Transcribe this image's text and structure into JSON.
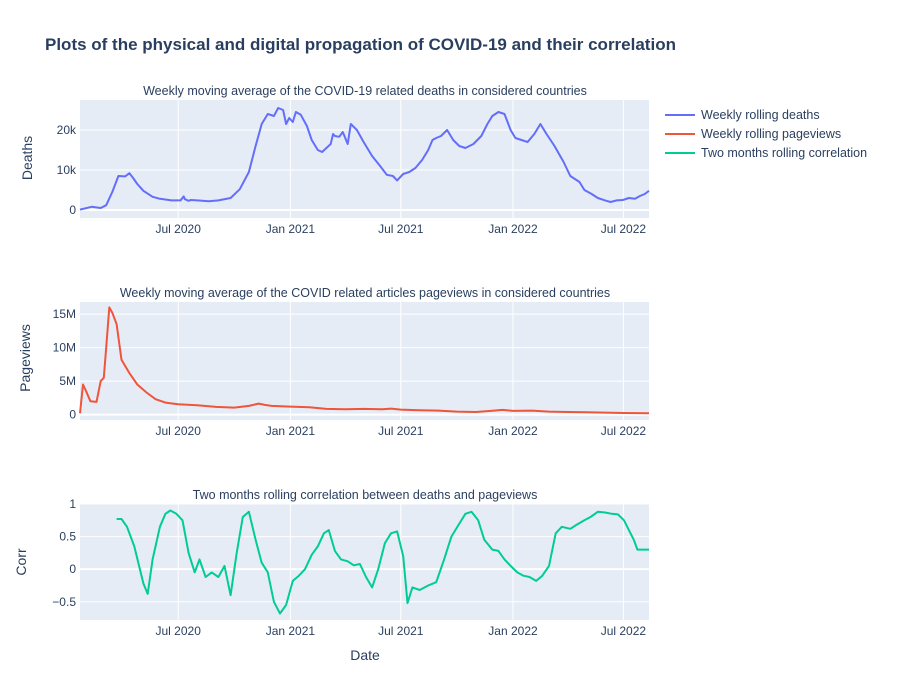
{
  "title": "Plots of the physical and digital propagation of COVID-19 and their correlation",
  "legend": [
    {
      "label": "Weekly rolling deaths",
      "color": "#636efa"
    },
    {
      "label": "Weekly rolling pageviews",
      "color": "#ef553b"
    },
    {
      "label": "Two months rolling correlation",
      "color": "#00cc96"
    }
  ],
  "chart_data": [
    {
      "type": "line",
      "title": "Weekly moving average of the COVID-19 related deaths in considered countries",
      "ylabel": "Deaths",
      "xlabel": "",
      "color": "#636efa",
      "xlim": [
        "2020-01-22",
        "2022-08-12"
      ],
      "ylim": [
        -2000,
        27500
      ],
      "x_ticks": [
        {
          "date": "2020-07-01",
          "label": "Jul 2020"
        },
        {
          "date": "2021-01-01",
          "label": "Jan 2021"
        },
        {
          "date": "2021-07-01",
          "label": "Jul 2021"
        },
        {
          "date": "2022-01-01",
          "label": "Jan 2022"
        },
        {
          "date": "2022-07-01",
          "label": "Jul 2022"
        }
      ],
      "y_ticks": [
        {
          "value": 0,
          "label": "0"
        },
        {
          "value": 10000,
          "label": "10k"
        },
        {
          "value": 20000,
          "label": "20k"
        }
      ],
      "series": [
        {
          "name": "Weekly rolling deaths",
          "x": [
            "2020-01-22",
            "2020-02-10",
            "2020-02-25",
            "2020-03-05",
            "2020-03-15",
            "2020-03-25",
            "2020-04-05",
            "2020-04-12",
            "2020-04-18",
            "2020-04-25",
            "2020-05-05",
            "2020-05-20",
            "2020-06-01",
            "2020-06-20",
            "2020-07-05",
            "2020-07-10",
            "2020-07-12",
            "2020-07-18",
            "2020-07-22",
            "2020-08-01",
            "2020-08-20",
            "2020-09-05",
            "2020-09-25",
            "2020-10-10",
            "2020-10-25",
            "2020-11-05",
            "2020-11-15",
            "2020-11-25",
            "2020-12-05",
            "2020-12-12",
            "2020-12-20",
            "2020-12-25",
            "2020-12-30",
            "2021-01-05",
            "2021-01-10",
            "2021-01-18",
            "2021-01-28",
            "2021-02-05",
            "2021-02-15",
            "2021-02-22",
            "2021-03-01",
            "2021-03-08",
            "2021-03-12",
            "2021-03-15",
            "2021-03-22",
            "2021-03-28",
            "2021-04-05",
            "2021-04-10",
            "2021-04-20",
            "2021-05-01",
            "2021-05-15",
            "2021-05-28",
            "2021-06-08",
            "2021-06-18",
            "2021-06-25",
            "2021-07-05",
            "2021-07-15",
            "2021-07-25",
            "2021-08-05",
            "2021-08-15",
            "2021-08-22",
            "2021-08-28",
            "2021-09-05",
            "2021-09-15",
            "2021-09-25",
            "2021-10-05",
            "2021-10-15",
            "2021-10-28",
            "2021-11-10",
            "2021-11-20",
            "2021-11-28",
            "2021-12-08",
            "2021-12-18",
            "2021-12-28",
            "2022-01-05",
            "2022-01-15",
            "2022-01-25",
            "2022-02-05",
            "2022-02-15",
            "2022-02-25",
            "2022-03-10",
            "2022-03-25",
            "2022-04-05",
            "2022-04-20",
            "2022-04-28",
            "2022-05-10",
            "2022-05-20",
            "2022-06-01",
            "2022-06-10",
            "2022-06-20",
            "2022-06-30",
            "2022-07-10",
            "2022-07-20",
            "2022-07-28",
            "2022-08-05",
            "2022-08-12"
          ],
          "y": [
            100,
            800,
            500,
            1200,
            4500,
            8500,
            8400,
            9200,
            8000,
            6500,
            4800,
            3300,
            2800,
            2400,
            2400,
            3400,
            2700,
            2300,
            2500,
            2400,
            2200,
            2400,
            3000,
            5200,
            9500,
            16000,
            21500,
            24000,
            23500,
            25500,
            25000,
            21500,
            23000,
            22000,
            24500,
            23800,
            21000,
            17500,
            15000,
            14500,
            15500,
            16500,
            19000,
            18500,
            18300,
            19500,
            16500,
            21500,
            20000,
            17000,
            13500,
            11000,
            8800,
            8500,
            7400,
            9000,
            9500,
            10500,
            12500,
            15000,
            17500,
            18000,
            18500,
            20000,
            17500,
            16000,
            15500,
            16500,
            18500,
            21500,
            23500,
            24500,
            24000,
            20000,
            18000,
            17500,
            17000,
            19000,
            21500,
            19000,
            16000,
            12000,
            8500,
            7000,
            5000,
            4000,
            3000,
            2400,
            2000,
            2400,
            2500,
            3000,
            2800,
            3500,
            4000,
            4800
          ]
        }
      ]
    },
    {
      "type": "line",
      "title": "Weekly moving average of the COVID related articles pageviews in considered countries",
      "ylabel": "Pageviews",
      "xlabel": "",
      "color": "#ef553b",
      "xlim": [
        "2020-01-22",
        "2022-08-12"
      ],
      "ylim": [
        -800000,
        16800000
      ],
      "x_ticks": [
        {
          "date": "2020-07-01",
          "label": "Jul 2020"
        },
        {
          "date": "2021-01-01",
          "label": "Jan 2021"
        },
        {
          "date": "2021-07-01",
          "label": "Jul 2021"
        },
        {
          "date": "2022-01-01",
          "label": "Jan 2022"
        },
        {
          "date": "2022-07-01",
          "label": "Jul 2022"
        }
      ],
      "y_ticks": [
        {
          "value": 0,
          "label": "0"
        },
        {
          "value": 5000000,
          "label": "5M"
        },
        {
          "value": 10000000,
          "label": "10M"
        },
        {
          "value": 15000000,
          "label": "15M"
        }
      ],
      "series": [
        {
          "name": "Weekly rolling pageviews",
          "x": [
            "2020-01-22",
            "2020-01-27",
            "2020-02-01",
            "2020-02-08",
            "2020-02-18",
            "2020-02-25",
            "2020-03-01",
            "2020-03-05",
            "2020-03-10",
            "2020-03-15",
            "2020-03-22",
            "2020-03-30",
            "2020-04-12",
            "2020-04-25",
            "2020-05-10",
            "2020-05-25",
            "2020-06-10",
            "2020-07-01",
            "2020-08-01",
            "2020-09-01",
            "2020-10-01",
            "2020-10-25",
            "2020-11-10",
            "2020-11-20",
            "2020-12-01",
            "2021-01-01",
            "2021-02-01",
            "2021-03-01",
            "2021-04-01",
            "2021-05-01",
            "2021-06-01",
            "2021-06-15",
            "2021-07-01",
            "2021-08-01",
            "2021-09-01",
            "2021-10-01",
            "2021-11-01",
            "2021-12-01",
            "2021-12-15",
            "2022-01-01",
            "2022-02-01",
            "2022-03-01",
            "2022-04-01",
            "2022-05-01",
            "2022-06-01",
            "2022-07-01",
            "2022-08-12"
          ],
          "y": [
            200000,
            4500000,
            3500000,
            2000000,
            1900000,
            5000000,
            5500000,
            10000000,
            16000000,
            15200000,
            13500000,
            8200000,
            6200000,
            4500000,
            3300000,
            2300000,
            1800000,
            1550000,
            1400000,
            1150000,
            1050000,
            1300000,
            1650000,
            1450000,
            1300000,
            1200000,
            1100000,
            850000,
            800000,
            850000,
            800000,
            900000,
            750000,
            650000,
            600000,
            450000,
            400000,
            600000,
            700000,
            550000,
            600000,
            450000,
            400000,
            350000,
            300000,
            250000,
            200000
          ]
        }
      ]
    },
    {
      "type": "line",
      "title": "Two months rolling correlation between deaths and pageviews",
      "ylabel": "Corr",
      "xlabel": "Date",
      "color": "#00cc96",
      "xlim": [
        "2020-01-22",
        "2022-08-12"
      ],
      "ylim": [
        -0.78,
        1.0
      ],
      "x_ticks": [
        {
          "date": "2020-07-01",
          "label": "Jul 2020"
        },
        {
          "date": "2021-01-01",
          "label": "Jan 2021"
        },
        {
          "date": "2021-07-01",
          "label": "Jul 2021"
        },
        {
          "date": "2022-01-01",
          "label": "Jan 2022"
        },
        {
          "date": "2022-07-01",
          "label": "Jul 2022"
        }
      ],
      "y_ticks": [
        {
          "value": -0.5,
          "label": "−0.5"
        },
        {
          "value": 0,
          "label": "0"
        },
        {
          "value": 0.5,
          "label": "0.5"
        },
        {
          "value": 1,
          "label": "1"
        }
      ],
      "series": [
        {
          "name": "Two months rolling correlation",
          "x": [
            "2020-03-22",
            "2020-03-30",
            "2020-04-08",
            "2020-04-20",
            "2020-05-05",
            "2020-05-12",
            "2020-05-20",
            "2020-06-01",
            "2020-06-10",
            "2020-06-18",
            "2020-06-28",
            "2020-07-08",
            "2020-07-18",
            "2020-07-28",
            "2020-08-05",
            "2020-08-15",
            "2020-08-25",
            "2020-09-05",
            "2020-09-15",
            "2020-09-25",
            "2020-10-05",
            "2020-10-15",
            "2020-10-25",
            "2020-11-05",
            "2020-11-15",
            "2020-11-25",
            "2020-12-05",
            "2020-12-15",
            "2020-12-25",
            "2021-01-05",
            "2021-01-15",
            "2021-01-25",
            "2021-02-05",
            "2021-02-15",
            "2021-02-25",
            "2021-03-05",
            "2021-03-15",
            "2021-03-25",
            "2021-04-05",
            "2021-04-15",
            "2021-04-25",
            "2021-05-05",
            "2021-05-15",
            "2021-05-25",
            "2021-06-05",
            "2021-06-15",
            "2021-06-25",
            "2021-07-05",
            "2021-07-12",
            "2021-07-20",
            "2021-08-01",
            "2021-08-15",
            "2021-08-28",
            "2021-09-10",
            "2021-09-22",
            "2021-10-05",
            "2021-10-15",
            "2021-10-25",
            "2021-11-05",
            "2021-11-15",
            "2021-11-28",
            "2021-12-08",
            "2021-12-18",
            "2021-12-28",
            "2022-01-08",
            "2022-01-18",
            "2022-01-28",
            "2022-02-08",
            "2022-02-18",
            "2022-03-01",
            "2022-03-12",
            "2022-03-22",
            "2022-04-05",
            "2022-04-15",
            "2022-04-28",
            "2022-05-08",
            "2022-05-20",
            "2022-06-01",
            "2022-06-12",
            "2022-06-22",
            "2022-07-02",
            "2022-07-10",
            "2022-07-18",
            "2022-07-24",
            "2022-07-30",
            "2022-08-05",
            "2022-08-12"
          ],
          "y": [
            0.77,
            0.77,
            0.65,
            0.35,
            -0.22,
            -0.38,
            0.15,
            0.65,
            0.85,
            0.9,
            0.85,
            0.75,
            0.25,
            -0.05,
            0.15,
            -0.12,
            -0.05,
            -0.12,
            0.05,
            -0.4,
            0.25,
            0.8,
            0.88,
            0.45,
            0.1,
            -0.05,
            -0.5,
            -0.68,
            -0.55,
            -0.18,
            -0.1,
            0.0,
            0.22,
            0.35,
            0.55,
            0.6,
            0.28,
            0.15,
            0.12,
            0.06,
            0.08,
            -0.12,
            -0.28,
            0.0,
            0.4,
            0.55,
            0.58,
            0.2,
            -0.52,
            -0.28,
            -0.32,
            -0.25,
            -0.2,
            0.15,
            0.5,
            0.7,
            0.85,
            0.88,
            0.75,
            0.45,
            0.3,
            0.28,
            0.15,
            0.05,
            -0.05,
            -0.1,
            -0.12,
            -0.18,
            -0.1,
            0.05,
            0.55,
            0.65,
            0.62,
            0.68,
            0.75,
            0.8,
            0.88,
            0.87,
            0.85,
            0.84,
            0.75,
            0.6,
            0.45,
            0.3,
            0.3,
            0.3,
            0.3
          ]
        }
      ]
    }
  ]
}
